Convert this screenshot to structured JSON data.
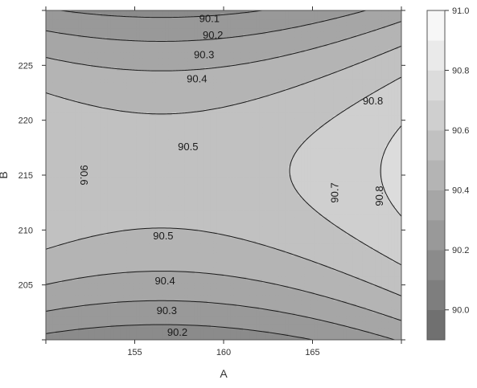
{
  "chart_data": {
    "type": "contour",
    "title": "",
    "xlabel": "A",
    "ylabel": "B",
    "xlim": [
      150,
      170
    ],
    "ylim": [
      200,
      230
    ],
    "x_ticks": [
      155,
      160,
      165
    ],
    "y_ticks": [
      205,
      210,
      215,
      220,
      225
    ],
    "x_tick_labels": [
      "155",
      "160",
      "165"
    ],
    "y_tick_labels": [
      "205",
      "210",
      "215",
      "220",
      "225"
    ],
    "contour_levels": [
      90.1,
      90.2,
      90.3,
      90.4,
      90.5,
      90.6,
      90.7,
      90.8
    ],
    "contour_labels": [
      {
        "text": "90.1",
        "x": 159.2,
        "y": 229.2,
        "rotate": 0
      },
      {
        "text": "90.2",
        "x": 159.4,
        "y": 227.7,
        "rotate": 0
      },
      {
        "text": "90.3",
        "x": 158.9,
        "y": 225.9,
        "rotate": 0
      },
      {
        "text": "90.4",
        "x": 158.5,
        "y": 223.7,
        "rotate": 0
      },
      {
        "text": "90.5",
        "x": 158.0,
        "y": 217.5,
        "rotate": 0
      },
      {
        "text": "90.6",
        "x": 152.1,
        "y": 215.0,
        "rotate": 90
      },
      {
        "text": "90.8",
        "x": 168.4,
        "y": 221.7,
        "rotate": 0
      },
      {
        "text": "90.7",
        "x": 166.3,
        "y": 213.4,
        "rotate": -90
      },
      {
        "text": "90.8",
        "x": 168.8,
        "y": 213.1,
        "rotate": -90
      },
      {
        "text": "90.5",
        "x": 156.6,
        "y": 209.4,
        "rotate": 0
      },
      {
        "text": "90.4",
        "x": 156.7,
        "y": 205.3,
        "rotate": 0
      },
      {
        "text": "90.3",
        "x": 156.8,
        "y": 202.6,
        "rotate": 0
      },
      {
        "text": "90.2",
        "x": 157.4,
        "y": 200.6,
        "rotate": 0
      }
    ],
    "colorbar": {
      "min": 89.9,
      "max": 91.0,
      "tick_values": [
        90.0,
        90.2,
        90.4,
        90.6,
        90.8,
        91.0
      ],
      "tick_labels": [
        "90.0",
        "90.2",
        "90.4",
        "90.6",
        "90.8",
        "91.0"
      ]
    },
    "grid": false,
    "legend": "right colorbar"
  }
}
